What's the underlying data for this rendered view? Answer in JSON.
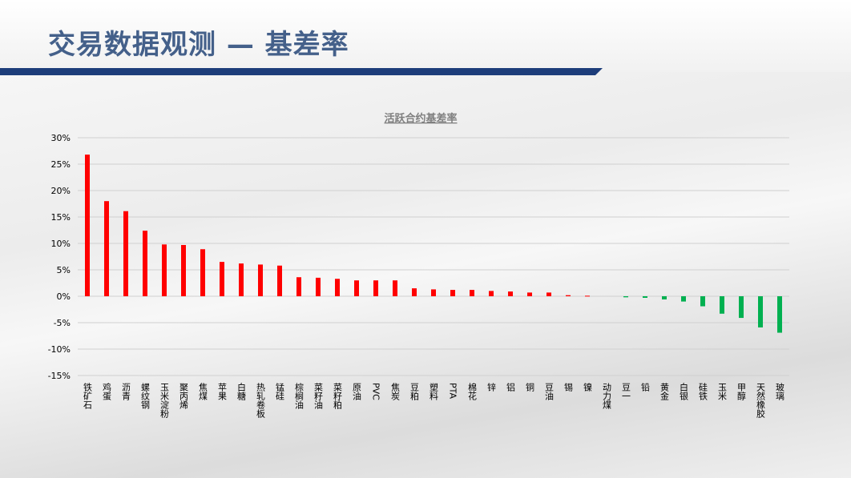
{
  "header": {
    "title": "交易数据观测 — 基差率"
  },
  "colors": {
    "positive": "#ff0000",
    "negative": "#00b050",
    "header_bar": "#1d3d7a",
    "title": "#44608a"
  },
  "chart_data": {
    "type": "bar",
    "title": "活跃合约基差率",
    "xlabel": "",
    "ylabel": "",
    "ylim": [
      -0.15,
      0.3
    ],
    "yticks": [
      "30%",
      "25%",
      "20%",
      "15%",
      "10%",
      "5%",
      "0%",
      "-5%",
      "-10%",
      "-15%"
    ],
    "grid": true,
    "categories": [
      "铁矿石",
      "鸡蛋",
      "沥青",
      "螺纹钢",
      "玉米淀粉",
      "聚丙烯",
      "焦煤",
      "苹果",
      "白糖",
      "热轧卷板",
      "锰硅",
      "棕榈油",
      "菜籽油",
      "菜籽粕",
      "原油",
      "PVC",
      "焦炭",
      "豆粕",
      "塑料",
      "PTA",
      "棉花",
      "锌",
      "铝",
      "铜",
      "豆油",
      "锡",
      "镍",
      "动力煤",
      "豆一",
      "铅",
      "黄金",
      "白银",
      "硅铁",
      "玉米",
      "甲醇",
      "天然橡胶",
      "玻璃"
    ],
    "values": [
      0.268,
      0.18,
      0.161,
      0.124,
      0.098,
      0.097,
      0.089,
      0.065,
      0.062,
      0.06,
      0.058,
      0.036,
      0.035,
      0.033,
      0.03,
      0.03,
      0.03,
      0.015,
      0.013,
      0.012,
      0.012,
      0.01,
      0.009,
      0.007,
      0.007,
      0.002,
      0.001,
      0.0,
      -0.002,
      -0.003,
      -0.006,
      -0.01,
      -0.019,
      -0.033,
      -0.041,
      -0.059,
      -0.069
    ]
  }
}
